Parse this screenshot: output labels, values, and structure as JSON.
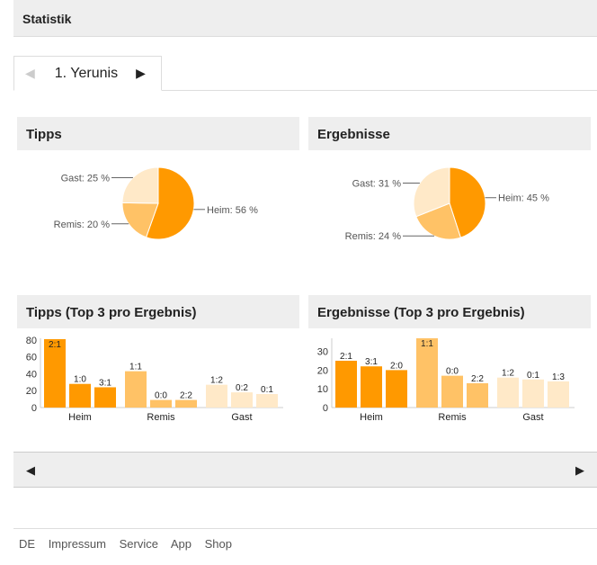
{
  "header": {
    "title": "Statistik"
  },
  "tab": {
    "prev_icon": "triangle-left-icon",
    "label": "1. Yerunis",
    "next_icon": "triangle-right-icon"
  },
  "colors": {
    "heim": "#ff9900",
    "remis": "#ffc266",
    "gast": "#ffe9c8"
  },
  "panels": {
    "tipps": "Tipps",
    "ergebnisse": "Ergebnisse",
    "tipps_top": "Tipps (Top 3 pro Ergebnis)",
    "ergebnisse_top": "Ergebnisse (Top 3 pro Ergebnis)"
  },
  "chart_data": [
    {
      "type": "pie",
      "slices": [
        {
          "label": "Heim: 56 %",
          "value": 56
        },
        {
          "label": "Remis: 20 %",
          "value": 20
        },
        {
          "label": "Gast: 25 %",
          "value": 25
        }
      ]
    },
    {
      "type": "pie",
      "slices": [
        {
          "label": "Heim: 45 %",
          "value": 45
        },
        {
          "label": "Remis: 24 %",
          "value": 24
        },
        {
          "label": "Gast: 31 %",
          "value": 31
        }
      ]
    },
    {
      "type": "bar",
      "categories": [
        "Heim",
        "Remis",
        "Gast"
      ],
      "ylim": [
        0,
        82
      ],
      "yticks": [
        0,
        20,
        40,
        60,
        80
      ],
      "groups": [
        [
          {
            "label": "2:1",
            "value": 81
          },
          {
            "label": "1:0",
            "value": 28
          },
          {
            "label": "3:1",
            "value": 24
          }
        ],
        [
          {
            "label": "1:1",
            "value": 43
          },
          {
            "label": "0:0",
            "value": 9
          },
          {
            "label": "2:2",
            "value": 9
          }
        ],
        [
          {
            "label": "1:2",
            "value": 27
          },
          {
            "label": "0:2",
            "value": 18
          },
          {
            "label": "0:1",
            "value": 16
          }
        ]
      ]
    },
    {
      "type": "bar",
      "categories": [
        "Heim",
        "Remis",
        "Gast"
      ],
      "ylim": [
        0,
        37
      ],
      "yticks": [
        0,
        10,
        20,
        30
      ],
      "groups": [
        [
          {
            "label": "2:1",
            "value": 25
          },
          {
            "label": "3:1",
            "value": 22
          },
          {
            "label": "2:0",
            "value": 20
          }
        ],
        [
          {
            "label": "1:1",
            "value": 37
          },
          {
            "label": "0:0",
            "value": 17
          },
          {
            "label": "2:2",
            "value": 13
          }
        ],
        [
          {
            "label": "1:2",
            "value": 16
          },
          {
            "label": "0:1",
            "value": 15
          },
          {
            "label": "1:3",
            "value": 14
          }
        ]
      ]
    }
  ],
  "nav": {
    "prev": "◀",
    "next": "▶"
  },
  "footer": {
    "links": [
      "DE",
      "Impressum",
      "Service",
      "App",
      "Shop"
    ]
  }
}
